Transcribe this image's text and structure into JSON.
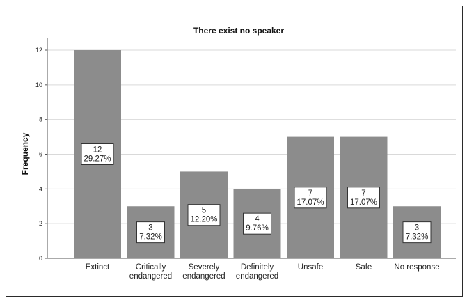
{
  "chart_data": {
    "type": "bar",
    "title": "There exist no speaker",
    "xlabel": "",
    "ylabel": "Frequency",
    "ylim": [
      0,
      12
    ],
    "yticks": [
      "0",
      "2",
      "4",
      "6",
      "8",
      "10",
      "12"
    ],
    "categories": [
      [
        "Extinct"
      ],
      [
        "Critically",
        "endangered"
      ],
      [
        "Severely",
        "endangered"
      ],
      [
        "Definitely",
        "endangered"
      ],
      [
        "Unsafe"
      ],
      [
        "Safe"
      ],
      [
        "No response"
      ]
    ],
    "values": [
      12,
      3,
      5,
      4,
      7,
      7,
      3
    ],
    "data_labels": [
      [
        "12",
        "29.27%"
      ],
      [
        "3",
        "7.32%"
      ],
      [
        "5",
        "12.20%"
      ],
      [
        "4",
        "9.76%"
      ],
      [
        "7",
        "17.07%"
      ],
      [
        "7",
        "17.07%"
      ],
      [
        "3",
        "7.32%"
      ]
    ],
    "grid": true,
    "legend": "none",
    "colors": {
      "bar": "#8c8c8c",
      "grid": "#d9d9d9",
      "axis": "#555555"
    }
  }
}
